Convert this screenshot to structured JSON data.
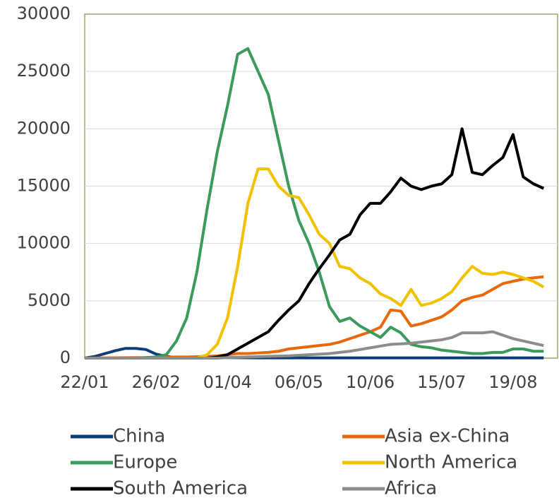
{
  "chart_data": {
    "type": "line",
    "categories": [
      "22/01",
      null,
      null,
      null,
      null,
      null,
      null,
      "26/02",
      null,
      null,
      null,
      null,
      null,
      null,
      "01/04",
      null,
      null,
      null,
      null,
      null,
      null,
      "06/05",
      null,
      null,
      null,
      null,
      null,
      null,
      "10/06",
      null,
      null,
      null,
      null,
      null,
      null,
      "15/07",
      null,
      null,
      null,
      null,
      null,
      null,
      "19/08",
      null,
      null,
      null
    ],
    "series": [
      {
        "name": "China",
        "color": "#0b3d78",
        "values": [
          0,
          150,
          400,
          650,
          850,
          850,
          750,
          350,
          150,
          50,
          30,
          30,
          50,
          80,
          50,
          40,
          30,
          20,
          20,
          20,
          20,
          20,
          20,
          20,
          20,
          20,
          20,
          20,
          20,
          20,
          20,
          20,
          20,
          20,
          20,
          20,
          20,
          20,
          20,
          20,
          20,
          20,
          20,
          20,
          20,
          20
        ]
      },
      {
        "name": "Asia ex-China",
        "color": "#e8690c",
        "values": [
          0,
          10,
          20,
          30,
          40,
          50,
          50,
          60,
          80,
          100,
          100,
          120,
          150,
          200,
          300,
          400,
          400,
          450,
          500,
          600,
          800,
          900,
          1000,
          1100,
          1200,
          1400,
          1700,
          2000,
          2300,
          2700,
          4200,
          4100,
          2800,
          3000,
          3300,
          3600,
          4200,
          5000,
          5300,
          5500,
          6000,
          6500,
          6700,
          6900,
          7000,
          7100
        ]
      },
      {
        "name": "Europe",
        "color": "#3b9a5c",
        "values": [
          0,
          0,
          0,
          0,
          0,
          0,
          50,
          100,
          300,
          1500,
          3500,
          7500,
          13000,
          18000,
          22000,
          26500,
          27000,
          25000,
          23000,
          19000,
          15000,
          12000,
          10000,
          7500,
          4500,
          3200,
          3500,
          2800,
          2300,
          1800,
          2700,
          2200,
          1200,
          1000,
          900,
          700,
          600,
          500,
          400,
          400,
          500,
          500,
          800,
          800,
          600,
          600
        ]
      },
      {
        "name": "North America",
        "color": "#f2c100",
        "values": [
          0,
          0,
          0,
          0,
          0,
          0,
          0,
          0,
          0,
          0,
          0,
          0,
          300,
          1200,
          3500,
          8000,
          13500,
          16500,
          16500,
          15000,
          14200,
          14000,
          12500,
          10800,
          10000,
          8000,
          7800,
          7000,
          6500,
          5600,
          5200,
          4600,
          6000,
          4600,
          4800,
          5200,
          5800,
          7000,
          8000,
          7400,
          7300,
          7500,
          7300,
          7000,
          6700,
          6200
        ]
      },
      {
        "name": "South America",
        "color": "#000000",
        "values": [
          0,
          0,
          0,
          0,
          0,
          0,
          0,
          0,
          0,
          0,
          0,
          0,
          0,
          100,
          300,
          800,
          1300,
          1800,
          2300,
          3300,
          4200,
          5000,
          6500,
          7800,
          9000,
          10300,
          10800,
          12500,
          13500,
          13500,
          14500,
          15700,
          15000,
          14700,
          15000,
          15200,
          16000,
          20000,
          16200,
          16000,
          16800,
          17500,
          19500,
          15800,
          15200,
          14800
        ]
      },
      {
        "name": "Africa",
        "color": "#8c8c8c",
        "values": [
          0,
          0,
          0,
          0,
          0,
          0,
          0,
          0,
          0,
          0,
          0,
          0,
          0,
          0,
          50,
          80,
          100,
          120,
          150,
          180,
          200,
          250,
          300,
          350,
          400,
          500,
          600,
          750,
          900,
          1050,
          1200,
          1250,
          1300,
          1400,
          1500,
          1600,
          1800,
          2200,
          2200,
          2200,
          2300,
          2000,
          1700,
          1500,
          1300,
          1100
        ]
      }
    ],
    "ylim": [
      0,
      30000
    ],
    "yticks": [
      0,
      5000,
      10000,
      15000,
      20000,
      25000,
      30000
    ],
    "grid": true,
    "legend": "bottom"
  }
}
